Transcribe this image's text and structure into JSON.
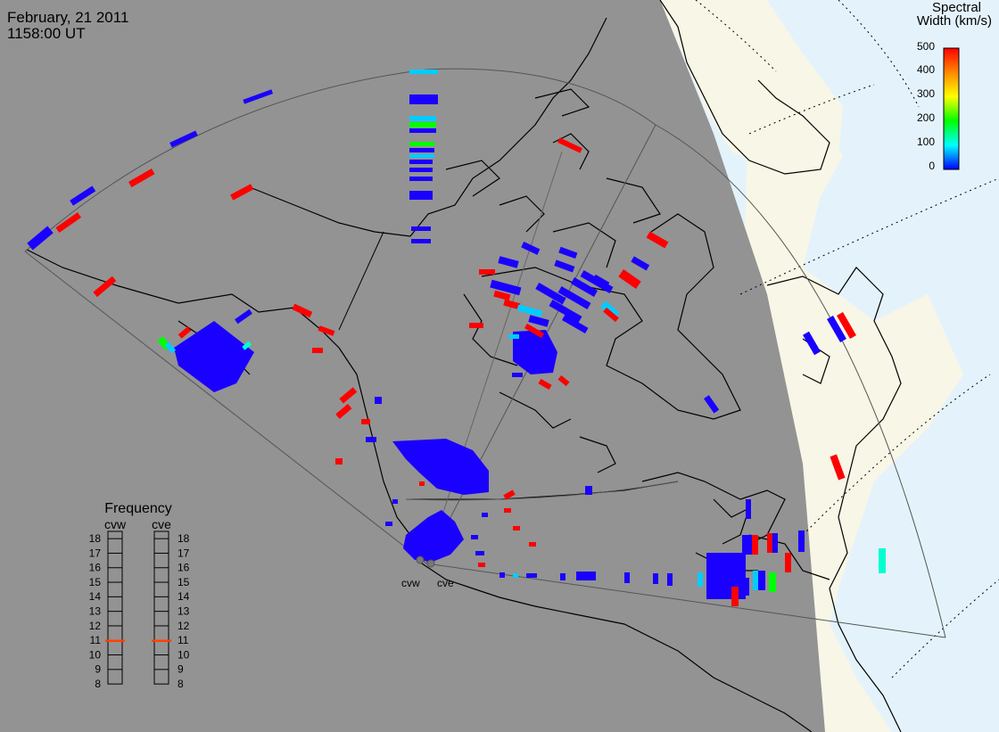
{
  "header": {
    "date": "February, 21 2011",
    "time": "1158:00 UT"
  },
  "colorbar": {
    "title_line1": "Spectral",
    "title_line2": "Width (km/s)",
    "ticks": [
      "500",
      "400",
      "300",
      "200",
      "100",
      "0"
    ],
    "value_range": [
      0,
      500
    ],
    "colors": [
      "#ff0000",
      "#ffaa00",
      "#ffff00",
      "#00ff00",
      "#00ffff",
      "#0000ff"
    ]
  },
  "radars": [
    {
      "code": "cvw",
      "label": "cvw"
    },
    {
      "code": "cve",
      "label": "cve"
    }
  ],
  "frequency_panel": {
    "title": "Frequency",
    "columns": [
      "cvw",
      "cve"
    ],
    "scale_labels": [
      "18",
      "17",
      "16",
      "15",
      "14",
      "13",
      "12",
      "11",
      "10",
      "9",
      "8"
    ],
    "current_frequency": {
      "cvw": 10.9,
      "cve": 10.9
    },
    "indicator_color": "#ff4000"
  },
  "map_colors": {
    "night_shade": "#939393",
    "land": "#f8f6e6",
    "ocean": "#e4f3fb",
    "coast": "#000000",
    "fov_outline": "#555555"
  },
  "scatter_colors": {
    "blue": "#1a00ff",
    "red": "#ff0000",
    "cyan": "#00ccff",
    "green": "#00ff00",
    "aqua": "#00ffd0"
  }
}
